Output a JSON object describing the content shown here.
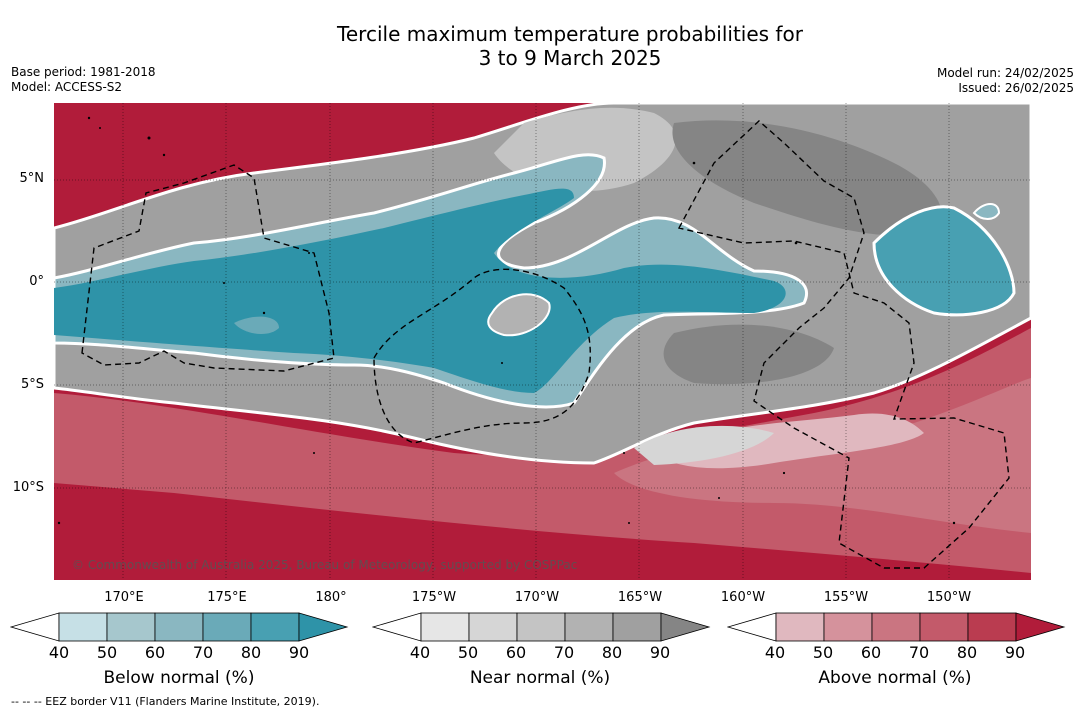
{
  "title": {
    "line1": "Tercile maximum temperature probabilities for",
    "line2": "3 to 9 March 2025"
  },
  "meta_left": {
    "base_period": "Base period: 1981-2018",
    "model": "Model: ACCESS-S2"
  },
  "meta_right": {
    "model_run": "Model run: 24/02/2025",
    "issued": "Issued: 26/02/2025"
  },
  "map": {
    "lat_labels": [
      "5°N",
      "0°",
      "5°S",
      "10°S"
    ],
    "lon_labels": [
      "170°E",
      "175°E",
      "180°",
      "175°W",
      "170°W",
      "165°W",
      "160°W",
      "155°W",
      "150°W"
    ],
    "copyright": "© Commonwealth of Australia 2025, Bureau of Meteorology, supported by COSPPac",
    "colors": {
      "below": [
        "#c6e0e6",
        "#a6c7cd",
        "#8ab7c1",
        "#6aaab8",
        "#48a0b2",
        "#2e93a8"
      ],
      "near": [
        "#e6e6e6",
        "#d6d6d6",
        "#c4c4c4",
        "#b2b2b2",
        "#a0a0a0",
        "#858585"
      ],
      "above": [
        "#e0b8bf",
        "#d5929c",
        "#ca7581",
        "#c35a6a",
        "#ba3c50",
        "#b11c3a"
      ]
    }
  },
  "colorbars": [
    {
      "label": "Below normal (%)",
      "ticks": [
        "40",
        "50",
        "60",
        "70",
        "80",
        "90"
      ]
    },
    {
      "label": "Near normal (%)",
      "ticks": [
        "40",
        "50",
        "60",
        "70",
        "80",
        "90"
      ]
    },
    {
      "label": "Above normal (%)",
      "ticks": [
        "40",
        "50",
        "60",
        "70",
        "80",
        "90"
      ]
    }
  ],
  "footer": "--  --  -- EEZ border V11 (Flanders Marine Institute, 2019)."
}
